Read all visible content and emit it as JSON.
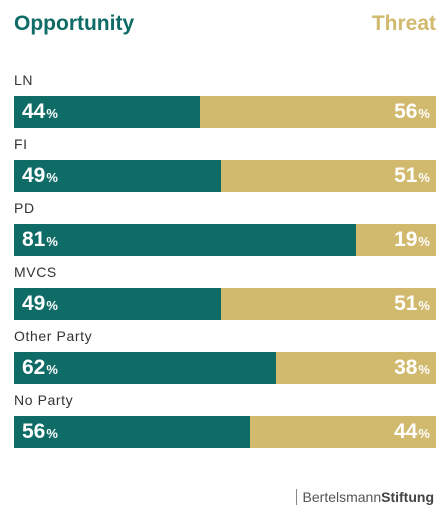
{
  "colors": {
    "opportunity": "#0f6b65",
    "threat": "#d1b96e"
  },
  "legend": {
    "opportunity": "Opportunity",
    "threat": "Threat"
  },
  "chart_data": {
    "type": "bar",
    "stacked": true,
    "orientation": "horizontal",
    "categories": [
      "LN",
      "FI",
      "PD",
      "MVCS",
      "Other Party",
      "No Party"
    ],
    "series": [
      {
        "name": "Opportunity",
        "values": [
          44,
          49,
          81,
          49,
          62,
          56
        ]
      },
      {
        "name": "Threat",
        "values": [
          56,
          51,
          19,
          51,
          38,
          44
        ]
      }
    ],
    "unit": "%",
    "legend_position": "top"
  },
  "footer": {
    "brand_part1": "Bertelsmann",
    "brand_part2": "Stiftung"
  }
}
